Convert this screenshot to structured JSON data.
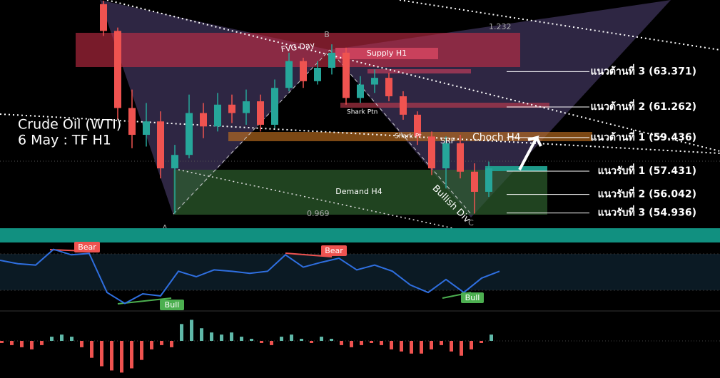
{
  "chart_data": [
    {
      "type": "candlestick",
      "title": "Crude Oil (WTI)",
      "subtitle": "6 May : TF H1",
      "up_color": "#26a69a",
      "down_color": "#ef5350",
      "ylim": [
        54.027,
        67.644
      ],
      "open": [
        67.4,
        65.8,
        61.2,
        59.6,
        60.4,
        57.6,
        58.4,
        60.9,
        60.1,
        61.4,
        60.9,
        61.6,
        60.2,
        62.4,
        64.0,
        62.8,
        63.6,
        64.5,
        61.8,
        62.6,
        63.0,
        61.9,
        60.8,
        59.5,
        57.6,
        59.1,
        57.4,
        56.2
      ],
      "high": [
        67.6,
        66.0,
        62.3,
        61.5,
        61.0,
        59.0,
        62.0,
        61.5,
        62.1,
        62.0,
        62.3,
        62.0,
        62.9,
        64.5,
        64.2,
        64.0,
        65.0,
        64.8,
        63.1,
        63.5,
        63.3,
        62.2,
        61.0,
        59.8,
        59.5,
        59.6,
        57.9,
        58.0
      ],
      "low": [
        65.5,
        60.5,
        58.8,
        58.9,
        57.0,
        54.9,
        58.2,
        59.4,
        59.8,
        60.3,
        60.2,
        59.8,
        60.0,
        62.2,
        62.4,
        62.6,
        63.2,
        61.4,
        61.5,
        62.1,
        61.6,
        60.5,
        59.0,
        57.2,
        56.4,
        57.0,
        54.9,
        55.9
      ],
      "close": [
        65.8,
        61.2,
        59.6,
        60.4,
        57.6,
        58.4,
        60.9,
        60.1,
        61.4,
        60.9,
        61.6,
        60.2,
        62.4,
        64.0,
        62.8,
        63.6,
        64.5,
        61.8,
        62.6,
        63.0,
        61.9,
        60.8,
        59.5,
        57.6,
        59.1,
        57.4,
        56.2,
        57.6
      ],
      "levels": [
        {
          "value": 63.371,
          "label": "แนวต้านที่ 3 (63.371)"
        },
        {
          "value": 61.262,
          "label": "แนวต้านที่ 2 (61.262)"
        },
        {
          "value": 59.436,
          "label": "แนวต้านที่ 1 (59.436)"
        },
        {
          "value": 57.431,
          "label": "แนวรับที่ 1 (57.431)"
        },
        {
          "value": 56.042,
          "label": "แนวรับที่ 2  (56.042)"
        },
        {
          "value": 54.936,
          "label": "แนวรับที่ 3  (54.936)"
        }
      ],
      "annotations": {
        "fvg": "FVG Day",
        "supply": "Supply H1",
        "b": "B",
        "fib_top": "1.232",
        "shark_ptn": "Shark Ptn",
        "shark_pt": "Shark Pt",
        "srf": "SRF",
        "choch": "Choch H4",
        "demand": "Demand H4",
        "fib_bottom": "0.969",
        "a": "A",
        "c": "C",
        "div": "Bullish Div"
      }
    },
    {
      "type": "line",
      "color": "#2f6fe0",
      "ylim": [
        0,
        100
      ],
      "values": [
        74,
        69,
        67,
        90,
        82,
        84,
        27,
        11,
        25,
        22,
        58,
        50,
        60,
        58,
        55,
        58,
        82,
        64,
        71,
        77,
        60,
        67,
        58,
        38,
        27,
        46,
        27,
        48,
        58
      ],
      "annotations": [
        "Bear",
        "Bear",
        "Bull",
        "Bull"
      ]
    },
    {
      "type": "bar",
      "pos_color": "#5fb8a8",
      "neg_color": "#ef5350",
      "values": [
        -0.1,
        -0.2,
        -0.3,
        -0.4,
        -0.2,
        0.2,
        0.3,
        0.2,
        -0.3,
        -0.8,
        -1.2,
        -1.4,
        -1.5,
        -1.3,
        -0.9,
        -0.4,
        -0.2,
        -0.3,
        0.8,
        1.0,
        0.6,
        0.4,
        0.3,
        0.4,
        0.2,
        0.1,
        -0.1,
        -0.2,
        0.2,
        0.3,
        0.1,
        -0.1,
        0.2,
        0.1,
        -0.2,
        -0.3,
        -0.2,
        -0.1,
        -0.2,
        -0.4,
        -0.5,
        -0.6,
        -0.6,
        -0.4,
        -0.2,
        -0.5,
        -0.7,
        -0.4,
        -0.1,
        0.3
      ]
    }
  ]
}
